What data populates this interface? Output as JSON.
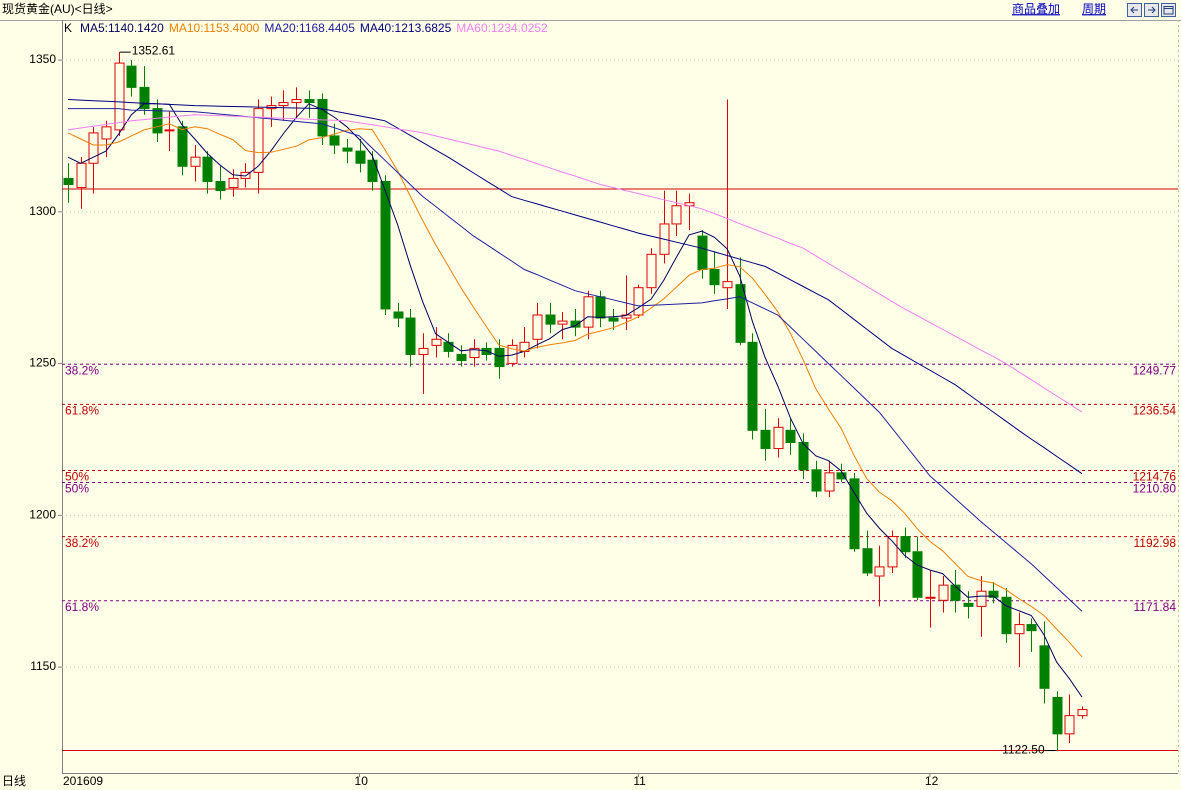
{
  "chart_data": {
    "type": "candlestick",
    "title": "现货黄金(AU)<日线>",
    "toolbar": [
      "商品叠加",
      "周期"
    ],
    "legend_prefix": "K",
    "period_label": "日线",
    "categories": [
      "201609",
      null,
      null,
      null,
      null,
      null,
      null,
      null,
      null,
      null,
      null,
      null,
      null,
      null,
      null,
      null,
      null,
      null,
      null,
      null,
      null,
      null,
      null,
      "10",
      null,
      null,
      null,
      null,
      null,
      null,
      null,
      null,
      null,
      null,
      null,
      null,
      null,
      null,
      null,
      null,
      null,
      null,
      null,
      null,
      null,
      "11",
      null,
      null,
      null,
      null,
      null,
      null,
      null,
      null,
      null,
      null,
      null,
      null,
      null,
      null,
      null,
      null,
      null,
      null,
      null,
      null,
      null,
      null,
      "12",
      null,
      null,
      null,
      null,
      null,
      null,
      null,
      null,
      null,
      null,
      null,
      null
    ],
    "open": [
      1311,
      1308,
      1316,
      1324,
      1327,
      1348,
      1341,
      1334,
      1327,
      1328,
      1315,
      1318,
      1310,
      1308,
      1311,
      1313,
      1334,
      1335,
      1336,
      1337,
      1337,
      1325,
      1321,
      1320,
      1317,
      1310,
      1267,
      1265,
      1253,
      1256,
      1257,
      1253,
      1252,
      1255,
      1255,
      1250,
      1254,
      1258,
      1266,
      1263,
      1264,
      1262,
      1272,
      1265,
      1265,
      1266,
      1275,
      1286,
      1296,
      1302,
      1292,
      1281,
      1275,
      1276,
      1257,
      1228,
      1222,
      1228,
      1224,
      1215,
      1208,
      1214,
      1212,
      1189,
      1180,
      1183,
      1193,
      1188,
      1173,
      1172,
      1177,
      1171,
      1170,
      1175,
      1173,
      1161,
      1164,
      1157,
      1140,
      1128,
      1134
    ],
    "high": [
      1316,
      1318,
      1328,
      1330,
      1352.61,
      1350,
      1348,
      1337,
      1333,
      1330,
      1322,
      1320,
      1315,
      1314,
      1316,
      1337,
      1338,
      1340,
      1341,
      1340,
      1339,
      1329,
      1324,
      1324,
      1320,
      1312,
      1270,
      1268,
      1260,
      1262,
      1260,
      1256,
      1258,
      1257,
      1258,
      1258,
      1262,
      1270,
      1270,
      1267,
      1268,
      1274,
      1274,
      1268,
      1279,
      1276,
      1288,
      1307,
      1307,
      1306,
      1294,
      1287,
      1337,
      1285,
      1260,
      1235,
      1232,
      1232,
      1227,
      1218,
      1218,
      1217,
      1214,
      1195,
      1190,
      1195,
      1196,
      1193,
      1182,
      1180,
      1182,
      1175,
      1180,
      1178,
      1176,
      1168,
      1166,
      1165,
      1142,
      1141,
      1137
    ],
    "low": [
      1303,
      1301,
      1306,
      1318,
      1325,
      1338,
      1332,
      1323,
      1320,
      1312,
      1310,
      1306,
      1304,
      1305,
      1308,
      1306,
      1328,
      1330,
      1331,
      1331,
      1322,
      1319,
      1316,
      1313,
      1307,
      1266,
      1262,
      1249,
      1240,
      1252,
      1252,
      1249,
      1249,
      1251,
      1245,
      1249,
      1252,
      1255,
      1260,
      1258,
      1259,
      1258,
      1262,
      1261,
      1261,
      1265,
      1273,
      1283,
      1292,
      1294,
      1278,
      1273,
      1268,
      1256,
      1225,
      1218,
      1219,
      1220,
      1212,
      1206,
      1206,
      1211,
      1188,
      1180,
      1170,
      1181,
      1186,
      1172,
      1163,
      1168,
      1168,
      1166,
      1160,
      1171,
      1158,
      1150,
      1155,
      1138,
      1122.5,
      1125,
      1133
    ],
    "close": [
      1309,
      1316,
      1326,
      1328,
      1349,
      1341,
      1334,
      1326,
      1327,
      1315,
      1318,
      1310,
      1307,
      1311,
      1313,
      1334,
      1335,
      1336,
      1337,
      1336,
      1325,
      1322,
      1320,
      1316,
      1310,
      1268,
      1265,
      1253,
      1255,
      1258,
      1254,
      1251,
      1255,
      1253,
      1249,
      1256,
      1257,
      1266,
      1263,
      1264,
      1262,
      1272,
      1265,
      1264,
      1266,
      1275,
      1286,
      1296,
      1302,
      1303,
      1281,
      1276,
      1277,
      1257,
      1228,
      1222,
      1229,
      1224,
      1215,
      1208,
      1214,
      1212,
      1189,
      1181,
      1183,
      1193,
      1188,
      1173,
      1173,
      1177,
      1172,
      1170,
      1175,
      1173,
      1161,
      1164,
      1162,
      1143,
      1128,
      1134,
      1136
    ],
    "up_color": "#e00000",
    "down_color": "#008000",
    "series": [
      {
        "name": "MA5:1140.1420",
        "color": "#000060",
        "values": [
          1318,
          1316,
          1318,
          1320,
          1325.6,
          1332,
          1335.6,
          1335.6,
          1335.4,
          1328.6,
          1324,
          1319.2,
          1315.4,
          1312.2,
          1311.8,
          1315,
          1320,
          1325.8,
          1331,
          1335.6,
          1333.8,
          1331.2,
          1328,
          1323.8,
          1318.6,
          1307.2,
          1295.8,
          1282.4,
          1270.2,
          1259.8,
          1257,
          1254.2,
          1254.6,
          1254.2,
          1252.4,
          1252.8,
          1254,
          1256.2,
          1258.2,
          1261.2,
          1262.4,
          1265.4,
          1265.2,
          1265.4,
          1265.8,
          1268.4,
          1271.2,
          1277.4,
          1285,
          1292.4,
          1293.6,
          1291.6,
          1287.8,
          1278.8,
          1263.8,
          1252,
          1242.6,
          1232,
          1223.6,
          1219.6,
          1218,
          1214.6,
          1207.6,
          1200.8,
          1195.8,
          1191.6,
          1186.8,
          1183.6,
          1182,
          1180.8,
          1176.6,
          1173,
          1173.4,
          1173.4,
          1170.2,
          1168.6,
          1167,
          1160.6,
          1151.6,
          1146.2,
          1140.1
        ]
      },
      {
        "name": "MA10:1153.4000",
        "color": "#f08000",
        "values": [
          1326,
          1324,
          1322,
          1322,
          1323,
          1325,
          1327,
          1328,
          1329,
          1327.1,
          1328,
          1327.4,
          1325.5,
          1323.8,
          1320.2,
          1319.5,
          1319.6,
          1320.6,
          1321.6,
          1323.7,
          1324.4,
          1325.6,
          1326.9,
          1327.4,
          1327.1,
          1320.5,
          1313.5,
          1305.2,
          1297,
          1289.2,
          1282.1,
          1275,
          1268.5,
          1262.2,
          1256.1,
          1254.9,
          1254.1,
          1255.4,
          1256.2,
          1256.8,
          1257.6,
          1259.7,
          1260.7,
          1261.8,
          1263.5,
          1265.4,
          1268.3,
          1271.3,
          1275.2,
          1279.1,
          1281,
          1281.4,
          1282.6,
          1281.9,
          1278.1,
          1272.8,
          1267.1,
          1259.9,
          1251.2,
          1241.7,
          1235,
          1228.6,
          1219.8,
          1212.2,
          1207.7,
          1204.8,
          1200.7,
          1195.6,
          1191.4,
          1188.3,
          1184.1,
          1179.9,
          1178.5,
          1177.7,
          1175.5,
          1172.6,
          1170,
          1167,
          1162.5,
          1158.2,
          1153.4
        ]
      },
      {
        "name": "MA20:1168.4405",
        "color": "#2020a0",
        "values": [
          1334,
          1334,
          1334,
          1334,
          1334,
          1333.5,
          1333.4,
          1333.3,
          1333.2,
          1333.1,
          1333,
          1332.6,
          1332.2,
          1331.8,
          1331.4,
          1331,
          1330.6,
          1330.2,
          1329.8,
          1329.4,
          1329,
          1327.7,
          1326.3,
          1325,
          1321,
          1317,
          1313,
          1309,
          1305,
          1301.8,
          1298.5,
          1295.3,
          1292,
          1289.3,
          1286.5,
          1283.8,
          1281,
          1279.3,
          1277.5,
          1275.8,
          1274,
          1273,
          1272,
          1271,
          1270,
          1269,
          1269.2,
          1269.4,
          1269.6,
          1269.8,
          1270,
          1270.7,
          1271.3,
          1272,
          1270,
          1268,
          1266,
          1262,
          1258,
          1254,
          1250,
          1246,
          1242,
          1238,
          1234,
          1228.8,
          1223.5,
          1218.3,
          1213,
          1209.3,
          1205.5,
          1201.8,
          1198,
          1194.5,
          1191,
          1187.5,
          1184,
          1180.1,
          1176.2,
          1172.3,
          1168.4
        ]
      },
      {
        "name": "MA40:1213.6825",
        "color": "#000080",
        "values": [
          1337,
          1336.8,
          1336.6,
          1336.4,
          1336.2,
          1336,
          1335.8,
          1335.6,
          1335.4,
          1335.2,
          1335,
          1334.9,
          1334.8,
          1334.7,
          1334.6,
          1334.5,
          1334.4,
          1334.3,
          1334.2,
          1334.1,
          1334,
          1333.2,
          1332.4,
          1331.6,
          1330.8,
          1330,
          1327.6,
          1325.2,
          1322.8,
          1320.4,
          1318,
          1315.4,
          1312.8,
          1310.2,
          1307.6,
          1305,
          1303.8,
          1302.6,
          1301.4,
          1300.2,
          1299,
          1297.8,
          1296.6,
          1295.4,
          1294.2,
          1293,
          1292,
          1291,
          1290,
          1289,
          1288,
          1286.8,
          1285.6,
          1284.4,
          1283.2,
          1282,
          1279.8,
          1277.6,
          1275.4,
          1273.2,
          1271,
          1267.8,
          1264.6,
          1261.4,
          1258.2,
          1255,
          1252.6,
          1250.2,
          1247.8,
          1245.4,
          1243,
          1240,
          1237,
          1234,
          1231,
          1228,
          1225.1,
          1222.3,
          1219.4,
          1216.6,
          1213.7
        ]
      },
      {
        "name": "MA60:1234.0252",
        "color": "#f080f0",
        "values": [
          1327,
          1327.6,
          1328.2,
          1328.8,
          1329.4,
          1330,
          1330.4,
          1330.8,
          1331.2,
          1331.6,
          1332,
          1331.8,
          1331.7,
          1331.5,
          1331.3,
          1331.2,
          1331,
          1330.8,
          1330.7,
          1330.5,
          1330.3,
          1330.2,
          1330,
          1329.3,
          1328.7,
          1328,
          1327.3,
          1326.7,
          1326,
          1325,
          1324,
          1323,
          1322,
          1321,
          1320,
          1318.6,
          1317.3,
          1315.9,
          1314.5,
          1313.1,
          1311.8,
          1310.4,
          1309,
          1308,
          1307,
          1306,
          1305,
          1304,
          1303,
          1302,
          1301,
          1299.4,
          1297.8,
          1296.1,
          1294.5,
          1292.9,
          1291.3,
          1289.6,
          1288,
          1285.5,
          1283,
          1280.5,
          1278,
          1275.5,
          1273,
          1270.5,
          1268,
          1265.8,
          1263.5,
          1261.3,
          1259,
          1256.8,
          1254.5,
          1252.3,
          1250,
          1247.3,
          1244.7,
          1242,
          1239.3,
          1236.7,
          1234
        ]
      }
    ],
    "fib_levels": [
      {
        "name": "38.2%",
        "value": 1249.77,
        "color": "#800080"
      },
      {
        "name": "61.8%",
        "value": 1236.54,
        "color": "#c00000"
      },
      {
        "name": "50%",
        "value": 1214.76,
        "color": "#c00000"
      },
      {
        "name": "50%",
        "value": 1210.8,
        "label": "1210.80",
        "color": "#800080"
      },
      {
        "name": "38.2%",
        "value": 1192.98,
        "color": "#c00000"
      },
      {
        "name": "61.8%",
        "value": 1171.84,
        "color": "#800080"
      }
    ],
    "ref_lines": [
      1307.5,
      1122.5
    ],
    "annotations": [
      {
        "index": 4,
        "value": 1352.61,
        "label": "1352.61"
      },
      {
        "index": 78,
        "value": 1122.5,
        "label": "1122.50"
      }
    ],
    "ylim": [
      1115.1,
      1363.2
    ],
    "yticks": [
      1150,
      1200,
      1250,
      1300,
      1350
    ],
    "grid": true
  }
}
